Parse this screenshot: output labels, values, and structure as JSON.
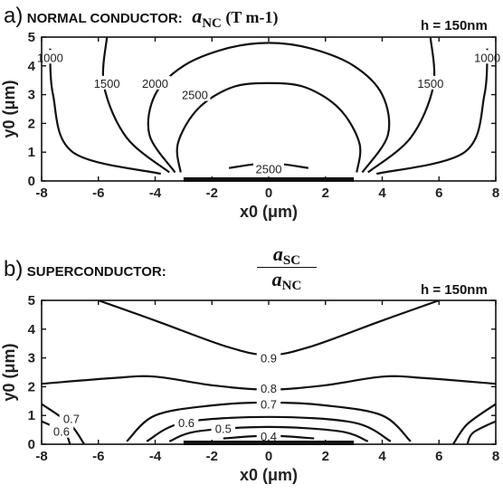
{
  "chart_data": [
    {
      "type": "contour",
      "panel": "a)",
      "title": "NORMAL CONDUCTOR:",
      "quantity": "a",
      "quantity_sub": "NC",
      "units": "(T m-1)",
      "annotation": "h = 150nm",
      "xlabel": "x0 (μm)",
      "ylabel": "y0 (μm)",
      "xlim": [
        -8,
        8
      ],
      "ylim": [
        0,
        5
      ],
      "xticks": [
        "-8",
        "-6",
        "-4",
        "-2",
        "0",
        "2",
        "4",
        "6",
        "8"
      ],
      "yticks": [
        "0",
        "1",
        "2",
        "3",
        "4",
        "5"
      ],
      "grid": false,
      "conductor": {
        "x": [
          -3,
          3
        ],
        "y": 0
      },
      "contours": [
        {
          "level": "2500",
          "points": [
            [
              -1.4,
              0.45
            ],
            [
              0,
              0.62
            ],
            [
              1.4,
              0.45
            ]
          ],
          "label_at": [
            0,
            0.42
          ]
        },
        {
          "level": "2500",
          "points": [
            [
              -3.1,
              0.3
            ],
            [
              -3.2,
              1.3
            ],
            [
              -2.5,
              2.5
            ],
            [
              -1.3,
              3.25
            ],
            [
              0,
              3.4
            ],
            [
              1.3,
              3.25
            ],
            [
              2.5,
              2.5
            ],
            [
              3.2,
              1.3
            ],
            [
              3.1,
              0.3
            ]
          ],
          "label_at": [
            -2.6,
            3.0
          ]
        },
        {
          "level": "2000",
          "points": [
            [
              -3.3,
              0.3
            ],
            [
              -4.2,
              1.6
            ],
            [
              -4.0,
              3.0
            ],
            [
              -3.0,
              4.0
            ],
            [
              -1.5,
              4.6
            ],
            [
              0,
              4.8
            ],
            [
              1.5,
              4.6
            ],
            [
              3.0,
              4.0
            ],
            [
              4.0,
              3.0
            ],
            [
              4.2,
              1.6
            ],
            [
              3.3,
              0.3
            ]
          ],
          "label_at": [
            -4.0,
            3.4
          ]
        },
        {
          "level": "1500",
          "points": [
            [
              -3.5,
              0.3
            ],
            [
              -5.0,
              1.5
            ],
            [
              -5.8,
              3.3
            ],
            [
              -5.7,
              5.0
            ]
          ],
          "label_at": [
            -5.7,
            3.4
          ]
        },
        {
          "level": "1500",
          "points": [
            [
              3.5,
              0.3
            ],
            [
              5.0,
              1.5
            ],
            [
              5.8,
              3.3
            ],
            [
              5.7,
              5.0
            ]
          ],
          "label_at": [
            5.7,
            3.4
          ]
        },
        {
          "level": "1000",
          "points": [
            [
              -3.8,
              0.25
            ],
            [
              -6.9,
              1.0
            ],
            [
              -7.6,
              3.0
            ],
            [
              -7.7,
              4.6
            ]
          ],
          "label_at": [
            -7.7,
            4.3
          ]
        },
        {
          "level": "1000",
          "points": [
            [
              3.8,
              0.25
            ],
            [
              6.9,
              1.0
            ],
            [
              7.6,
              3.0
            ],
            [
              7.7,
              4.6
            ]
          ],
          "label_at": [
            7.7,
            4.3
          ]
        }
      ]
    },
    {
      "type": "contour",
      "panel": "b)",
      "title": "SUPERCONDUCTOR:",
      "ratio_numerator": "a",
      "ratio_numerator_sub": "SC",
      "ratio_denominator": "a",
      "ratio_denominator_sub": "NC",
      "annotation": "h = 150nm",
      "xlabel": "x0 (μm)",
      "ylabel": "y0 (μm)",
      "xlim": [
        -8,
        8
      ],
      "ylim": [
        0,
        5
      ],
      "xticks": [
        "-8",
        "-6",
        "-4",
        "-2",
        "0",
        "2",
        "4",
        "6",
        "8"
      ],
      "yticks": [
        "0",
        "1",
        "2",
        "3",
        "4",
        "5"
      ],
      "grid": false,
      "conductor": {
        "x": [
          -3,
          3
        ],
        "y": 0
      },
      "contours": [
        {
          "level": "0.9",
          "points": [
            [
              -6.0,
              5.0
            ],
            [
              -4.0,
              4.3
            ],
            [
              -1.5,
              3.4
            ],
            [
              0,
              3.1
            ],
            [
              1.5,
              3.4
            ],
            [
              4.0,
              4.3
            ],
            [
              6.0,
              5.0
            ]
          ],
          "label_at": [
            0,
            3.0
          ]
        },
        {
          "level": "0.8",
          "points": [
            [
              -8.0,
              2.1
            ],
            [
              -5.5,
              2.3
            ],
            [
              -4.0,
              2.35
            ],
            [
              -2.0,
              2.05
            ],
            [
              0,
              1.9
            ],
            [
              2.0,
              2.05
            ],
            [
              4.0,
              2.35
            ],
            [
              5.5,
              2.3
            ],
            [
              8.0,
              2.1
            ]
          ],
          "label_at": [
            0,
            1.95
          ]
        },
        {
          "level": "0.7",
          "points": [
            [
              -5.0,
              0.1
            ],
            [
              -4.0,
              1.0
            ],
            [
              -2.0,
              1.35
            ],
            [
              0,
              1.45
            ],
            [
              2.0,
              1.35
            ],
            [
              4.0,
              1.0
            ],
            [
              5.0,
              0.1
            ]
          ],
          "label_at": [
            0,
            1.4
          ]
        },
        {
          "level": "0.6",
          "points": [
            [
              -4.3,
              0.1
            ],
            [
              -3.0,
              0.75
            ],
            [
              0,
              0.95
            ],
            [
              3.0,
              0.75
            ],
            [
              4.3,
              0.1
            ]
          ],
          "label_at": [
            -2.9,
            0.75
          ]
        },
        {
          "level": "0.5",
          "points": [
            [
              -3.5,
              0.1
            ],
            [
              -2.5,
              0.45
            ],
            [
              0,
              0.6
            ],
            [
              2.5,
              0.45
            ],
            [
              3.5,
              0.1
            ]
          ],
          "label_at": [
            -1.6,
            0.55
          ]
        },
        {
          "level": "0.4",
          "points": [
            [
              -1.6,
              0.2
            ],
            [
              0,
              0.3
            ],
            [
              1.6,
              0.2
            ]
          ],
          "label_at": [
            0,
            0.28
          ]
        },
        {
          "level": "0.7",
          "points": [
            [
              -8.0,
              1.4
            ],
            [
              -7.0,
              0.7
            ],
            [
              -6.5,
              0.0
            ]
          ],
          "label_at": [
            -6.95,
            0.9
          ]
        },
        {
          "level": "0.6",
          "points": [
            [
              -8.0,
              0.8
            ],
            [
              -7.2,
              0.4
            ],
            [
              -7.0,
              0.0
            ]
          ],
          "label_at": [
            -7.3,
            0.45
          ]
        },
        {
          "level": "0.7",
          "points": [
            [
              8.0,
              1.4
            ],
            [
              7.0,
              0.7
            ],
            [
              6.5,
              0.0
            ]
          ],
          "label_at": null
        },
        {
          "level": "0.6",
          "points": [
            [
              8.0,
              0.8
            ],
            [
              7.2,
              0.4
            ],
            [
              7.0,
              0.0
            ]
          ],
          "label_at": null
        }
      ]
    }
  ]
}
